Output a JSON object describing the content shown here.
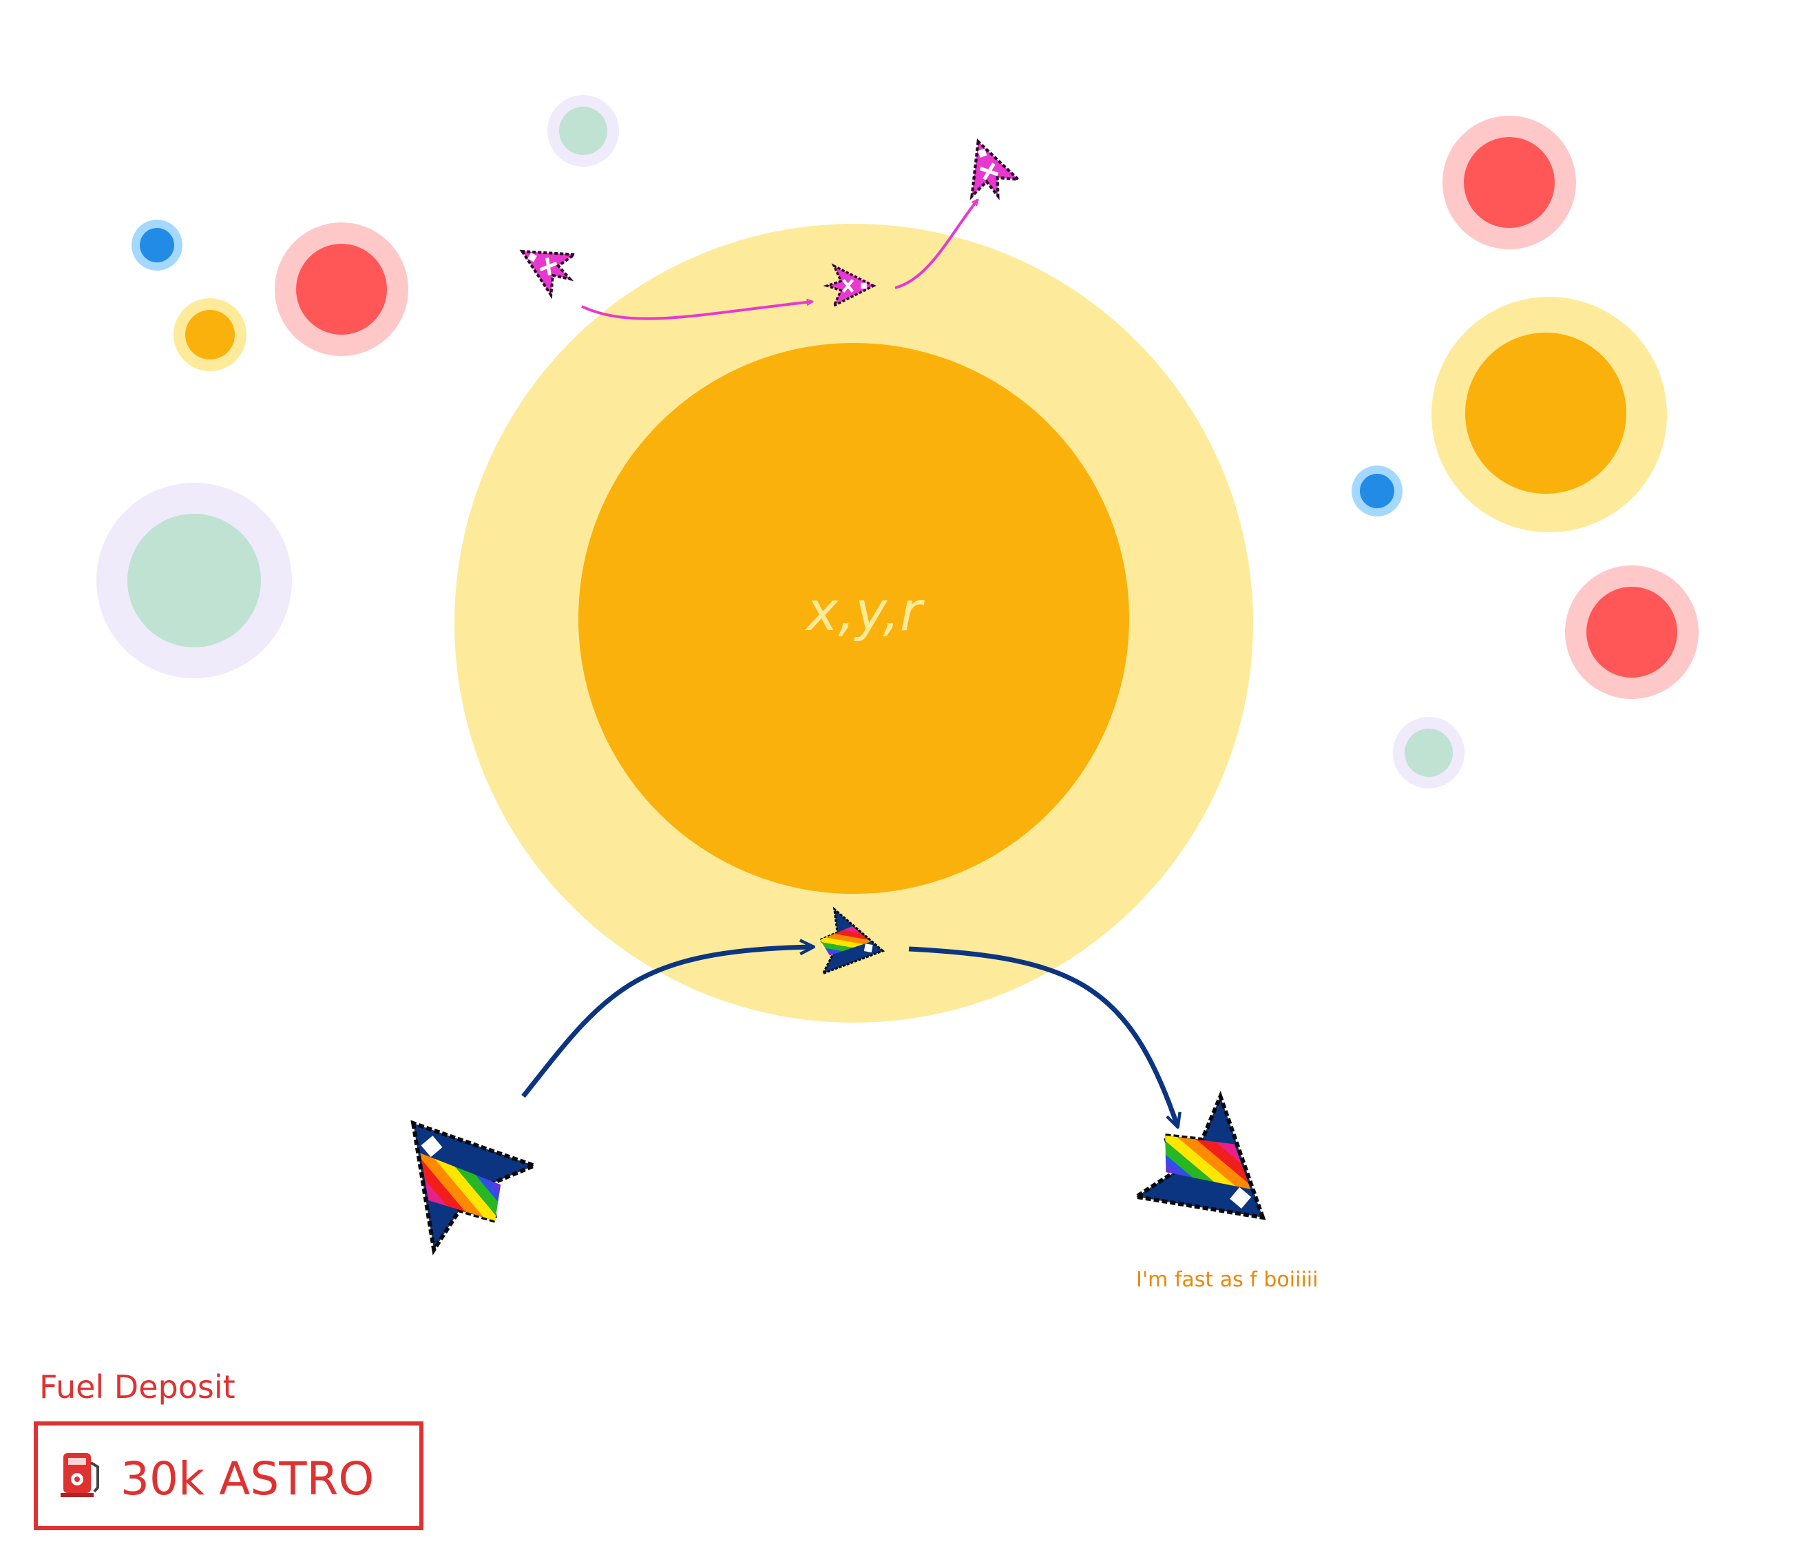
{
  "center_label": "x,y,r",
  "speed_caption": "I'm fast as f boiiiii",
  "fuel": {
    "heading": "Fuel Deposit",
    "amount": "30k ASTRO",
    "icon": "fuel-pump-icon"
  },
  "colors": {
    "sun_core": "#FAB10B",
    "sun_halo": "#FDEB9B",
    "red_planet": "#FF5757",
    "red_halo": "#FFC8C8",
    "blue_planet": "#228BE6",
    "blue_halo": "#A5D8FF",
    "mint_planet": "#C0E2D3",
    "mint_halo": "#EFEBFB",
    "pink_path": "#E838D0",
    "navy_path": "#0B3580",
    "fuel_red": "#E03131",
    "caption_orange": "#E8890C"
  }
}
